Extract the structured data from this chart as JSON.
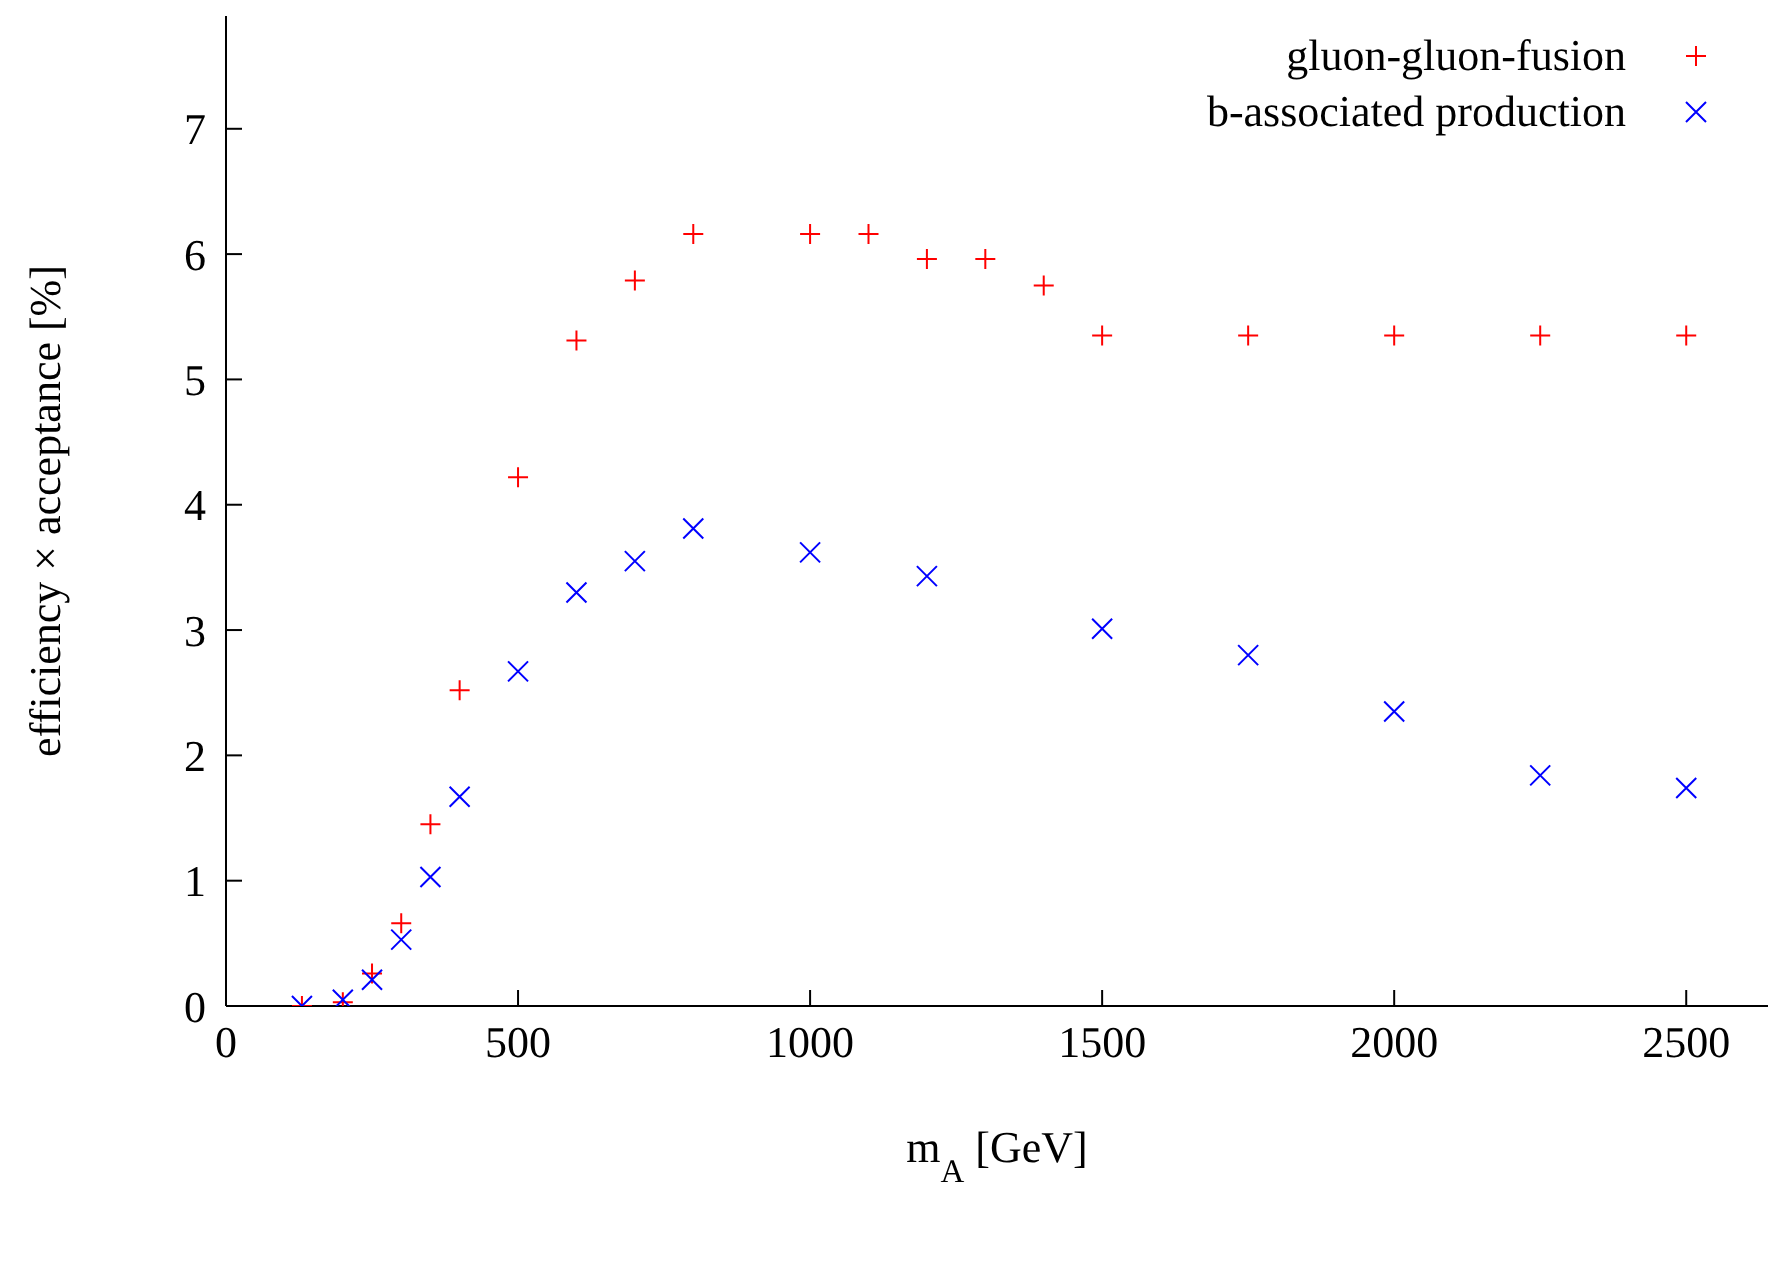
{
  "chart_data": {
    "type": "scatter",
    "xlabel": "m$_{A}$ [GeV]",
    "ylabel": "efficiency × acceptance [%]",
    "xlim": [
      0,
      2640
    ],
    "xticks": [
      0,
      500,
      1000,
      1500,
      2000,
      2500
    ],
    "ylim": [
      0,
      7.9
    ],
    "yticks": [
      0,
      1,
      2,
      3,
      4,
      5,
      6,
      7
    ],
    "grid": false,
    "legend": "top right",
    "series": [
      {
        "name": "gluon-gluon-fusion",
        "color": "#ff0000",
        "marker": "plus",
        "x": [
          130,
          200,
          250,
          300,
          350,
          400,
          500,
          600,
          700,
          800,
          1000,
          1100,
          1200,
          1300,
          1400,
          1500,
          1750,
          2000,
          2250,
          2500
        ],
        "values": [
          0,
          0.03,
          0.26,
          0.66,
          1.45,
          2.52,
          4.22,
          5.31,
          5.79,
          6.16,
          6.16,
          6.16,
          5.96,
          5.96,
          5.75,
          5.35,
          5.35,
          5.35,
          5.35,
          5.35
        ]
      },
      {
        "name": "b-associated production",
        "color": "#0000ff",
        "marker": "cross",
        "x": [
          130,
          200,
          250,
          300,
          350,
          400,
          500,
          600,
          700,
          800,
          1000,
          1200,
          1500,
          1750,
          2000,
          2250,
          2500
        ],
        "values": [
          0,
          0.05,
          0.21,
          0.53,
          1.03,
          1.67,
          2.67,
          3.3,
          3.55,
          3.81,
          3.62,
          3.43,
          3.01,
          2.8,
          2.35,
          1.84,
          1.74
        ]
      }
    ]
  }
}
